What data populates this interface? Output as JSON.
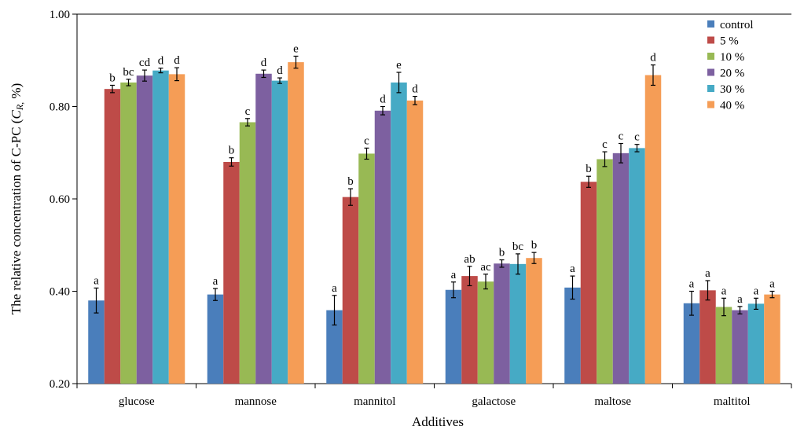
{
  "chart_data": {
    "type": "bar",
    "xlabel": "Additives",
    "ylabel_main": "The relative concentration of C-PC (",
    "ylabel_symbol": "C",
    "ylabel_subscript": "R,",
    "ylabel_tail": " %)",
    "ylim": [
      0.2,
      1.0
    ],
    "yticks": [
      "0.20",
      "0.40",
      "0.60",
      "0.80",
      "1.00"
    ],
    "ytick_values": [
      0.2,
      0.4,
      0.6,
      0.8,
      1.0
    ],
    "categories": [
      "glucose",
      "mannose",
      "mannitol",
      "galactose",
      "maltose",
      "maltitol"
    ],
    "legend_position": "top-right",
    "grid": false,
    "series": [
      {
        "name": "control",
        "color": "#4a7ebb",
        "values": [
          0.38,
          0.393,
          0.359,
          0.403,
          0.408,
          0.374
        ],
        "errors": [
          0.027,
          0.013,
          0.032,
          0.017,
          0.025,
          0.026
        ],
        "labels": [
          "a",
          "a",
          "a",
          "a",
          "a",
          "a"
        ]
      },
      {
        "name": "5 %",
        "color": "#be4b48",
        "values": [
          0.838,
          0.68,
          0.604,
          0.433,
          0.637,
          0.402
        ],
        "errors": [
          0.008,
          0.009,
          0.018,
          0.021,
          0.012,
          0.021
        ],
        "labels": [
          "b",
          "b",
          "b",
          "ab",
          "b",
          "a"
        ]
      },
      {
        "name": "10 %",
        "color": "#98b954",
        "values": [
          0.852,
          0.766,
          0.698,
          0.421,
          0.686,
          0.366
        ],
        "errors": [
          0.007,
          0.008,
          0.012,
          0.016,
          0.016,
          0.019
        ],
        "labels": [
          "bc",
          "c",
          "c",
          "ac",
          "c",
          "a"
        ]
      },
      {
        "name": "20 %",
        "color": "#7d60a0",
        "values": [
          0.867,
          0.871,
          0.791,
          0.46,
          0.699,
          0.359
        ],
        "errors": [
          0.012,
          0.008,
          0.009,
          0.008,
          0.021,
          0.008
        ],
        "labels": [
          "cd",
          "d",
          "d",
          "b",
          "c",
          "a"
        ]
      },
      {
        "name": "30 %",
        "color": "#46aac5",
        "values": [
          0.878,
          0.856,
          0.852,
          0.459,
          0.71,
          0.373
        ],
        "errors": [
          0.005,
          0.006,
          0.022,
          0.022,
          0.008,
          0.012
        ],
        "labels": [
          "d",
          "d",
          "e",
          "bc",
          "c",
          "a"
        ]
      },
      {
        "name": "40 %",
        "color": "#f59d56",
        "values": [
          0.87,
          0.896,
          0.813,
          0.472,
          0.868,
          0.393
        ],
        "errors": [
          0.014,
          0.013,
          0.009,
          0.012,
          0.022,
          0.007
        ],
        "labels": [
          "d",
          "e",
          "d",
          "b",
          "d",
          "a"
        ]
      }
    ]
  }
}
